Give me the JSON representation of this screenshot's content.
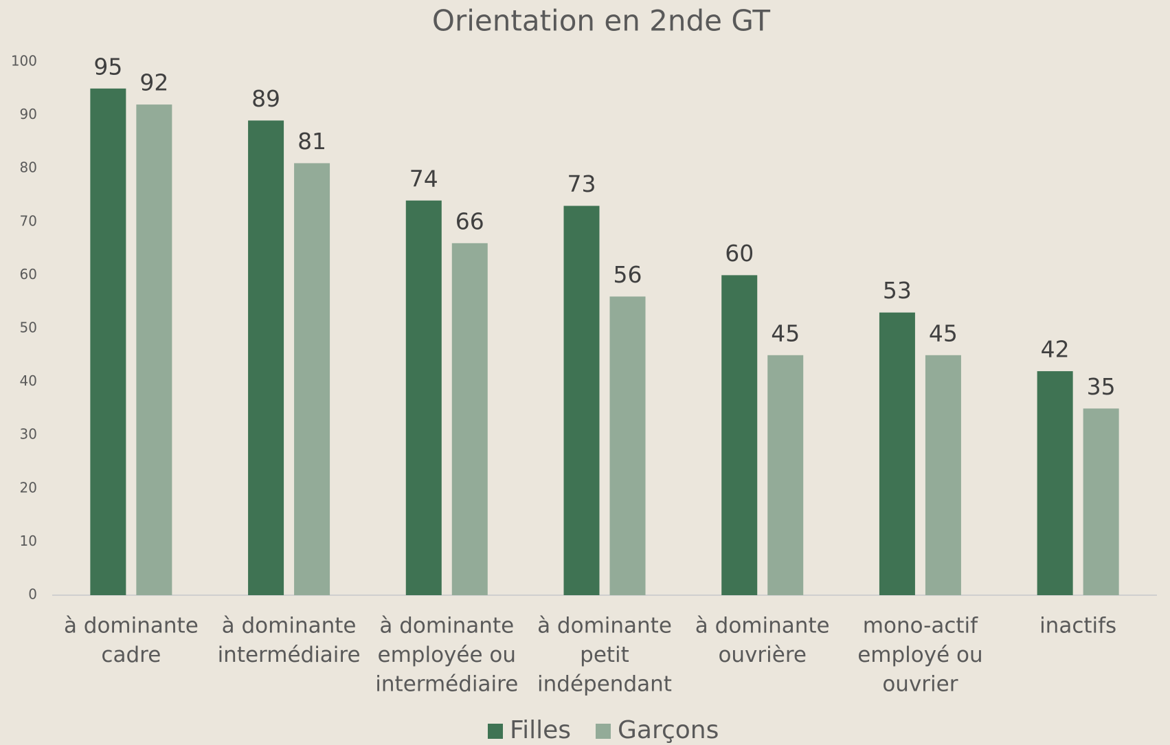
{
  "chart_data": {
    "type": "bar",
    "title": "Orientation en 2nde GT",
    "categories": [
      [
        "à dominante",
        "cadre"
      ],
      [
        "à dominante",
        "intermédiaire"
      ],
      [
        "à dominante",
        "employée ou",
        "intermédiaire"
      ],
      [
        "à dominante",
        "petit",
        "indépendant"
      ],
      [
        "à dominante",
        "ouvrière"
      ],
      [
        "mono-actif",
        "employé ou",
        "ouvrier"
      ],
      [
        "inactifs"
      ]
    ],
    "series": [
      {
        "name": "Filles",
        "color": "#3f7353",
        "values": [
          95,
          89,
          74,
          73,
          60,
          53,
          42
        ]
      },
      {
        "name": "Garçons",
        "color": "#93ab98",
        "values": [
          92,
          81,
          66,
          56,
          45,
          45,
          35
        ]
      }
    ],
    "ylim": [
      0,
      100
    ],
    "yticks": [
      0,
      10,
      20,
      30,
      40,
      50,
      60,
      70,
      80,
      90,
      100
    ],
    "grid": false,
    "legend": "bottom"
  }
}
